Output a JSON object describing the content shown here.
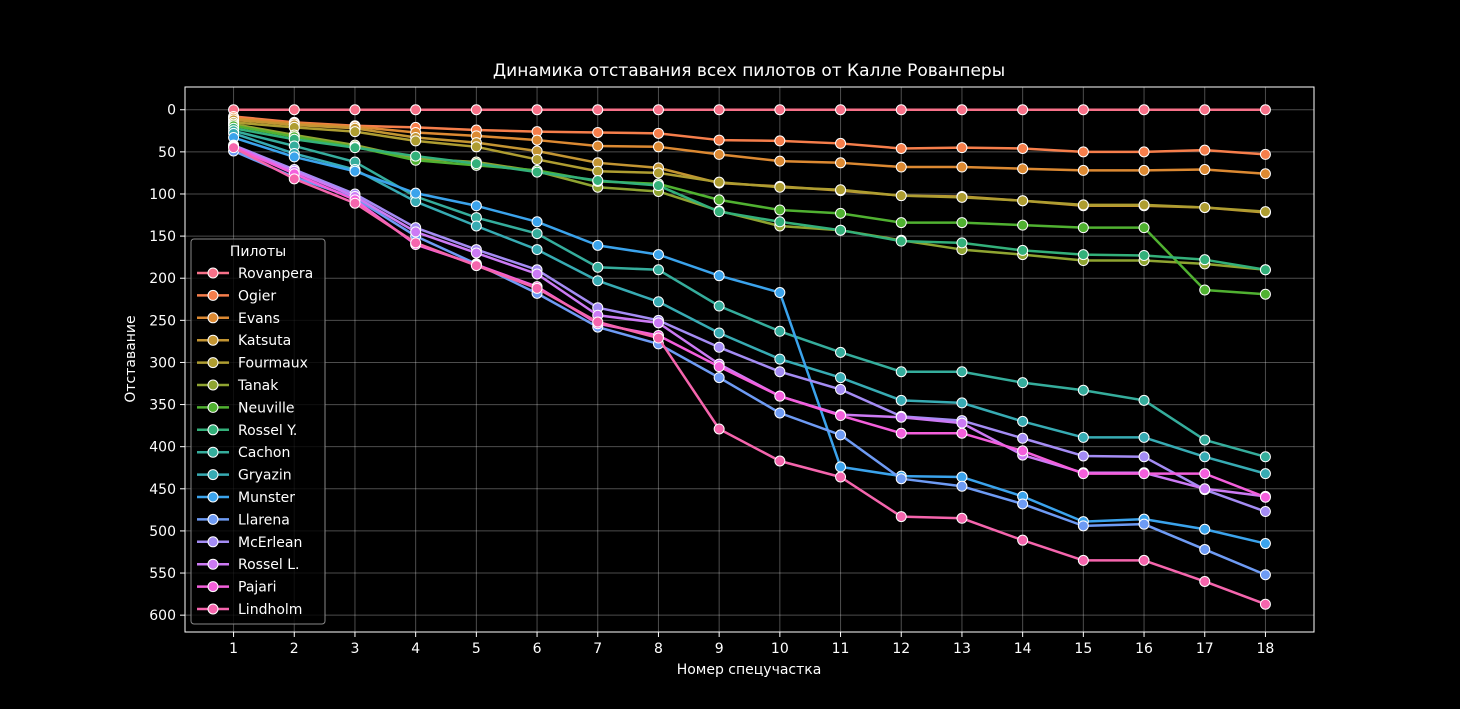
{
  "chart_data": {
    "type": "line",
    "title": "Динамика отставания всех пилотов от Калле Рованперы",
    "xlabel": "Номер спецучастка",
    "ylabel": "Отставание",
    "x": [
      1,
      2,
      3,
      4,
      5,
      6,
      7,
      8,
      9,
      10,
      11,
      12,
      13,
      14,
      15,
      16,
      17,
      18
    ],
    "xlim": [
      0.2,
      18.8
    ],
    "ylim": [
      620,
      -27
    ],
    "y_inverted": true,
    "yticks": [
      0,
      50,
      100,
      150,
      200,
      250,
      300,
      350,
      400,
      450,
      500,
      550,
      600
    ],
    "grid": true,
    "legend_title": "Пилоты",
    "legend_position": "center-left",
    "series": [
      {
        "name": "Rovanpera",
        "color": "#f77189",
        "values": [
          0,
          0,
          0,
          0,
          0,
          0,
          0,
          0,
          0,
          0,
          0,
          0,
          0,
          0,
          0,
          0,
          0,
          0
        ]
      },
      {
        "name": "Ogier",
        "color": "#f67e4b",
        "values": [
          8,
          15,
          19,
          21,
          24,
          26,
          27,
          28,
          36,
          37,
          40,
          46,
          45,
          46,
          50,
          50,
          48,
          53
        ]
      },
      {
        "name": "Evans",
        "color": "#dc8932",
        "values": [
          10,
          16,
          20,
          27,
          31,
          36,
          43,
          44,
          53,
          61,
          63,
          68,
          68,
          70,
          72,
          72,
          71,
          76
        ]
      },
      {
        "name": "Katsuta",
        "color": "#c39532",
        "values": [
          12,
          18,
          22,
          33,
          39,
          49,
          63,
          69,
          87,
          91,
          96,
          102,
          103,
          108,
          114,
          114,
          116,
          122
        ]
      },
      {
        "name": "Fourmaux",
        "color": "#ae9d31",
        "values": [
          15,
          21,
          26,
          37,
          44,
          59,
          73,
          75,
          86,
          92,
          95,
          102,
          104,
          108,
          113,
          113,
          116,
          121
        ]
      },
      {
        "name": "Tanak",
        "color": "#8fa431",
        "values": [
          17,
          30,
          42,
          58,
          62,
          73,
          92,
          97,
          120,
          138,
          143,
          155,
          166,
          172,
          179,
          179,
          183,
          190
        ]
      },
      {
        "name": "Neuville",
        "color": "#50b131",
        "values": [
          19,
          32,
          44,
          60,
          66,
          72,
          85,
          88,
          107,
          119,
          123,
          134,
          134,
          137,
          140,
          140,
          214,
          219
        ]
      },
      {
        "name": "Rossel Y.",
        "color": "#33b07a",
        "values": [
          22,
          35,
          45,
          55,
          64,
          74,
          84,
          90,
          121,
          133,
          143,
          156,
          158,
          167,
          172,
          173,
          178,
          190
        ]
      },
      {
        "name": "Cachon",
        "color": "#35ad9c",
        "values": [
          25,
          43,
          62,
          103,
          128,
          147,
          187,
          190,
          233,
          263,
          288,
          311,
          311,
          324,
          333,
          345,
          392,
          412
        ]
      },
      {
        "name": "Gryazin",
        "color": "#37abb3",
        "values": [
          28,
          52,
          71,
          109,
          138,
          166,
          203,
          228,
          265,
          296,
          318,
          345,
          348,
          370,
          389,
          389,
          412,
          432
        ]
      },
      {
        "name": "Munster",
        "color": "#3ba3ec",
        "values": [
          33,
          56,
          73,
          99,
          114,
          133,
          161,
          172,
          197,
          217,
          424,
          435,
          436,
          459,
          489,
          486,
          498,
          515
        ]
      },
      {
        "name": "Llarena",
        "color": "#6e9bf4",
        "values": [
          49,
          80,
          105,
          150,
          183,
          218,
          258,
          278,
          318,
          360,
          386,
          438,
          447,
          468,
          494,
          492,
          522,
          552
        ]
      },
      {
        "name": "McErlean",
        "color": "#a48cf4",
        "values": [
          42,
          71,
          100,
          140,
          166,
          190,
          235,
          250,
          282,
          311,
          332,
          364,
          369,
          390,
          411,
          412,
          451,
          477
        ]
      },
      {
        "name": "Rossel L.",
        "color": "#cc7af4",
        "values": [
          43,
          73,
          103,
          145,
          170,
          195,
          244,
          253,
          302,
          340,
          362,
          365,
          372,
          410,
          431,
          431,
          450,
          459
        ]
      },
      {
        "name": "Pajari",
        "color": "#f45fdc",
        "values": [
          44,
          76,
          107,
          160,
          184,
          210,
          254,
          268,
          305,
          340,
          363,
          384,
          384,
          405,
          432,
          432,
          432,
          460
        ]
      },
      {
        "name": "Lindholm",
        "color": "#f565ad",
        "values": [
          45,
          82,
          111,
          158,
          185,
          212,
          252,
          271,
          379,
          417,
          436,
          483,
          485,
          511,
          535,
          535,
          560,
          587
        ]
      }
    ]
  }
}
